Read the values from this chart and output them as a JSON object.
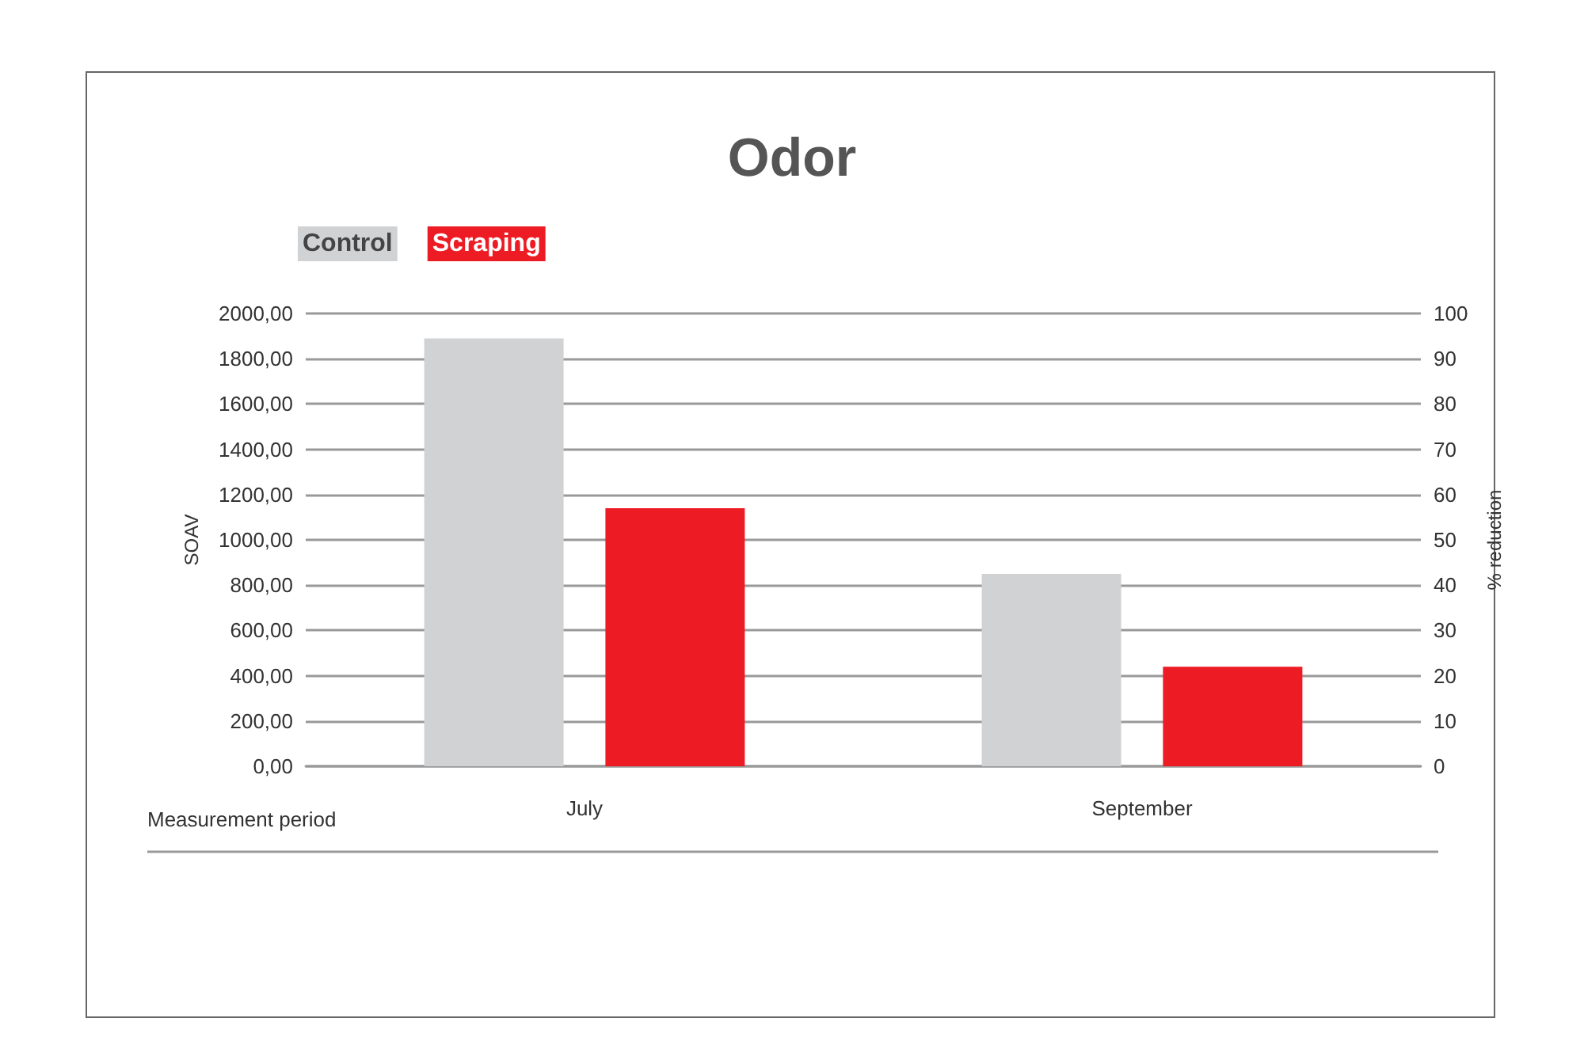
{
  "chart_data": {
    "type": "bar",
    "title": "Odor",
    "xlabel": "Measurement period",
    "ylabel": "SOAV",
    "y2label": "% reduction",
    "categories": [
      "July",
      "September"
    ],
    "series": [
      {
        "name": "Control",
        "color": "#d1d2d4",
        "values": [
          1890,
          850
        ]
      },
      {
        "name": "Scraping",
        "color": "#ed1c24",
        "values": [
          1140,
          440
        ]
      }
    ],
    "ylim": [
      0,
      2000
    ],
    "yticks": [
      {
        "value": 0,
        "label": "0,00"
      },
      {
        "value": 200,
        "label": "200,00"
      },
      {
        "value": 400,
        "label": "400,00"
      },
      {
        "value": 600,
        "label": "600,00"
      },
      {
        "value": 800,
        "label": "800,00"
      },
      {
        "value": 1000,
        "label": "1000,00"
      },
      {
        "value": 1200,
        "label": "1200,00"
      },
      {
        "value": 1400,
        "label": "1400,00"
      },
      {
        "value": 1600,
        "label": "1600,00"
      },
      {
        "value": 1800,
        "label": "1800,00"
      },
      {
        "value": 2000,
        "label": "2000,00"
      }
    ],
    "y2lim": [
      0,
      100
    ],
    "y2ticks": [
      0,
      10,
      20,
      30,
      40,
      50,
      60,
      70,
      80,
      90,
      100
    ],
    "grid": "y",
    "legend": "top left"
  }
}
